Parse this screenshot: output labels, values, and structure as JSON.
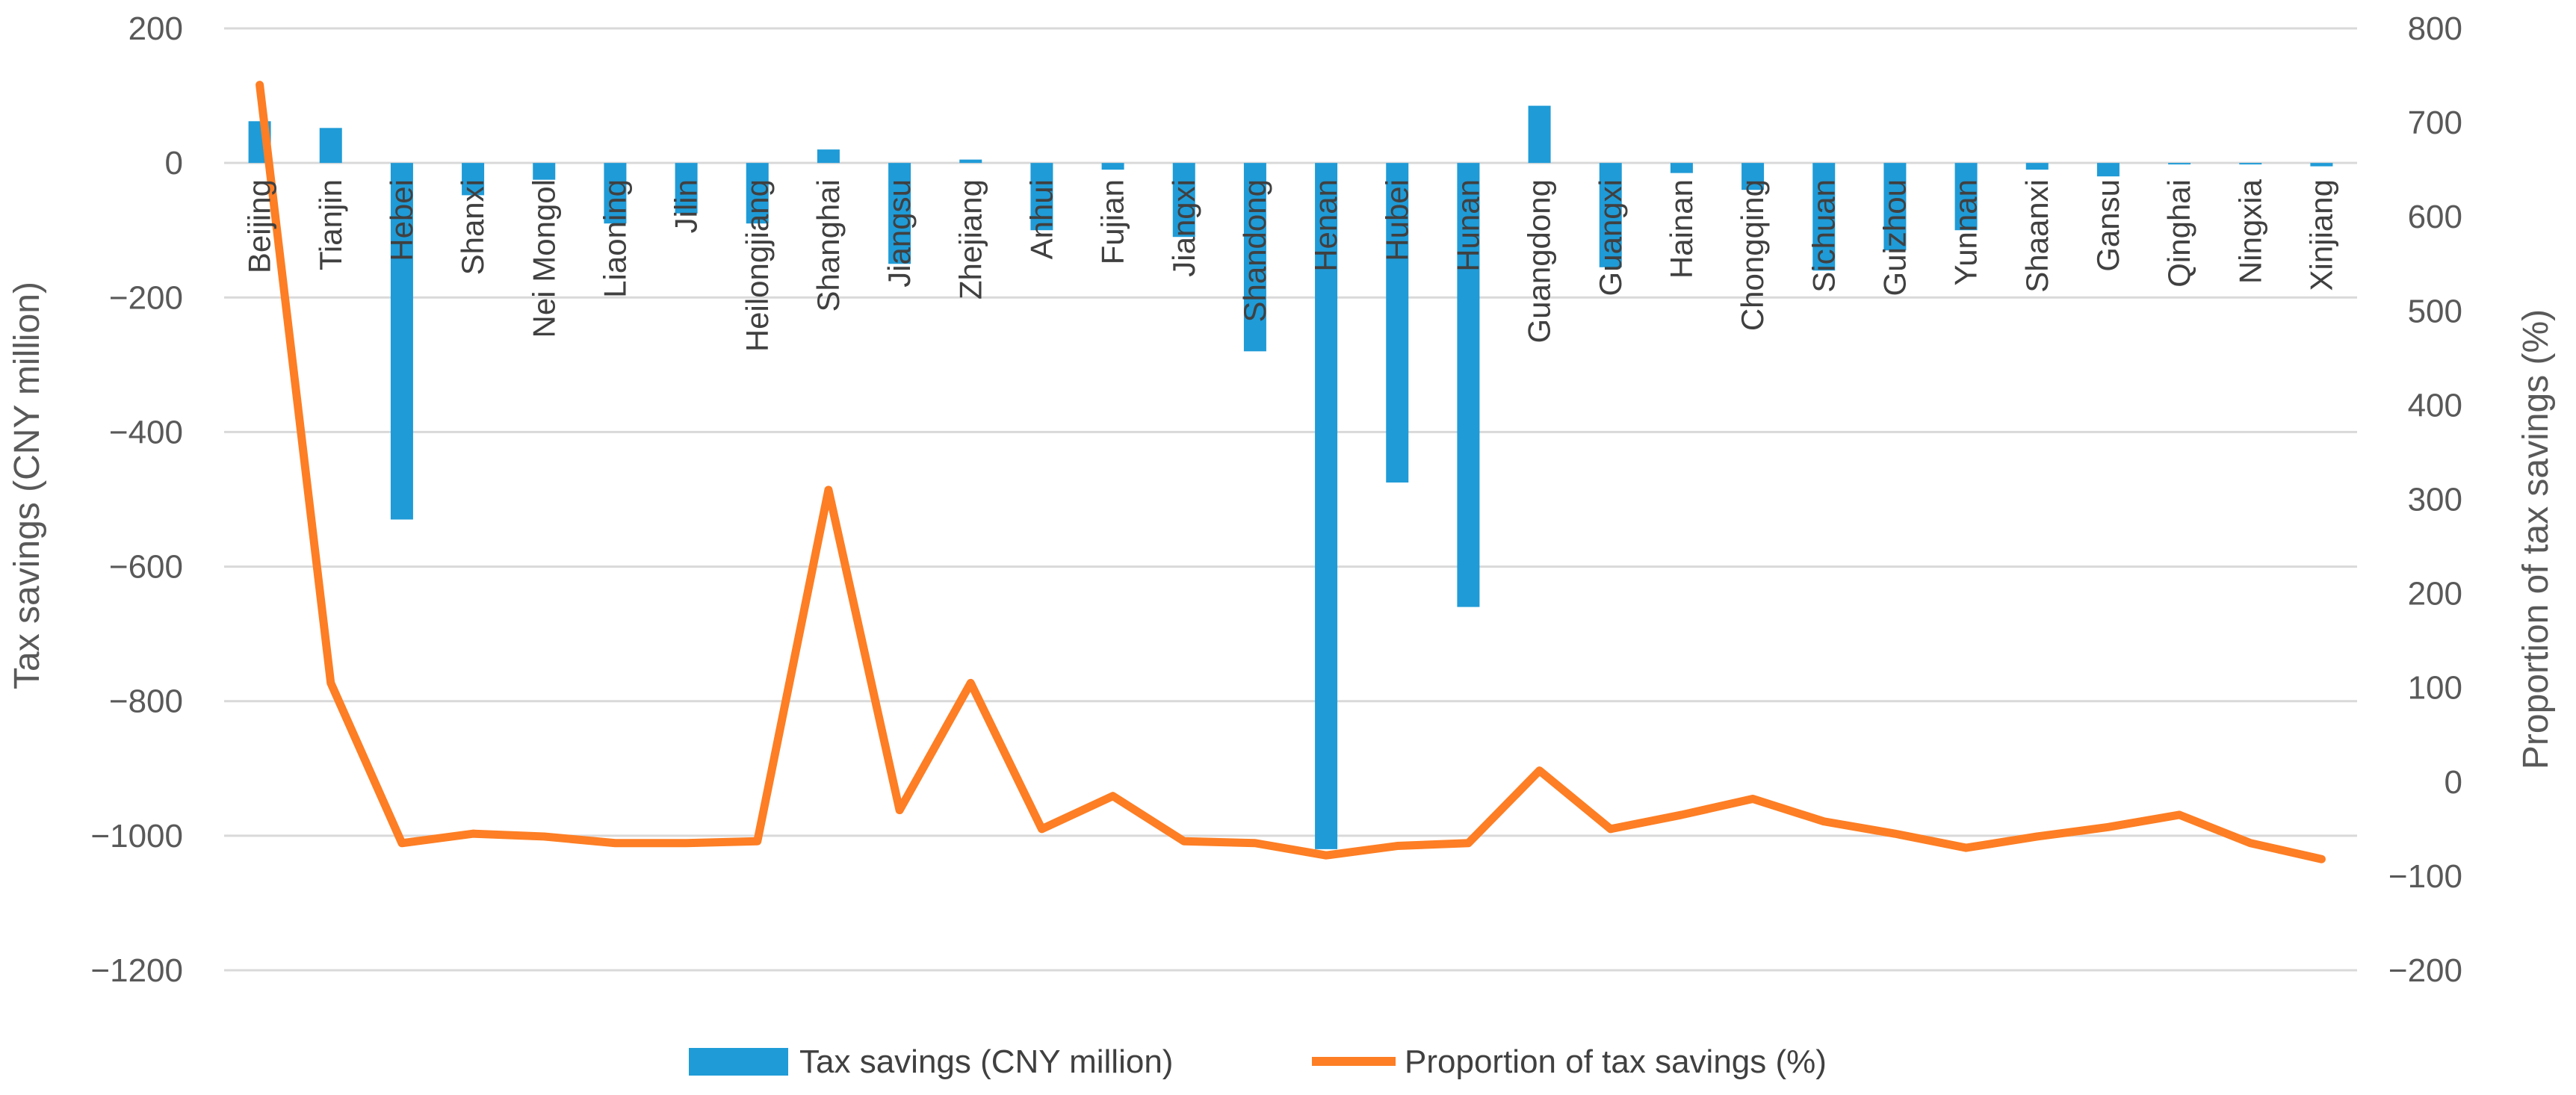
{
  "chart_data": {
    "type": "bar+line",
    "title": "",
    "categories": [
      "Beijing",
      "Tianjin",
      "Hebei",
      "Shanxi",
      "Nei Mongol",
      "Liaoning",
      "Jilin",
      "Heilongjiang",
      "Shanghai",
      "Jiangsu",
      "Zhejiang",
      "Anhui",
      "Fujian",
      "Jiangxi",
      "Shandong",
      "Henan",
      "Hubei",
      "Hunan",
      "Guangdong",
      "Guangxi",
      "Hainan",
      "Chongqing",
      "Sichuan",
      "Guizhou",
      "Yunnan",
      "Shaanxi",
      "Gansu",
      "Qinghai",
      "Ningxia",
      "Xinjiang"
    ],
    "series": [
      {
        "name": "Tax savings (CNY million)",
        "type": "bar",
        "axis": "left",
        "color": "#1f9bd7",
        "values": [
          62,
          52,
          -530,
          -48,
          -25,
          -90,
          -75,
          -90,
          20,
          -150,
          5,
          -100,
          -10,
          -110,
          -280,
          -1020,
          -475,
          -660,
          85,
          -155,
          -15,
          -40,
          -160,
          -130,
          -100,
          -10,
          -20,
          0,
          0,
          -5
        ]
      },
      {
        "name": "Proportion of tax savings (%)",
        "type": "line",
        "axis": "right",
        "color": "#fd7e24",
        "values": [
          740,
          105,
          -65,
          -55,
          -58,
          -65,
          -65,
          -63,
          310,
          -30,
          105,
          -50,
          -15,
          -63,
          -65,
          -78,
          -68,
          -65,
          12,
          -50,
          -35,
          -18,
          -42,
          -55,
          -70,
          -58,
          -48,
          -35,
          -65,
          -82
        ]
      }
    ],
    "left_axis": {
      "label": "Tax savings (CNY million)",
      "ylim": [
        -1200,
        200
      ],
      "ticks": [
        200,
        0,
        -200,
        -400,
        -600,
        -800,
        -1000,
        -1200
      ],
      "tick_labels": [
        "200",
        "0",
        "−200",
        "−400",
        "−600",
        "−800",
        "−1000",
        "−1200"
      ]
    },
    "right_axis": {
      "label": "Proportion of tax savings (%)",
      "ylim": [
        -200,
        800
      ],
      "ticks": [
        800,
        700,
        600,
        500,
        400,
        300,
        200,
        100,
        0,
        -100,
        -200
      ],
      "tick_labels": [
        "800",
        "700",
        "600",
        "500",
        "400",
        "300",
        "200",
        "100",
        "0",
        "−100",
        "−200"
      ]
    },
    "grid": true,
    "legend": {
      "position": "bottom",
      "entries": [
        "Tax savings (CNY million)",
        "Proportion of tax savings (%)"
      ]
    }
  }
}
